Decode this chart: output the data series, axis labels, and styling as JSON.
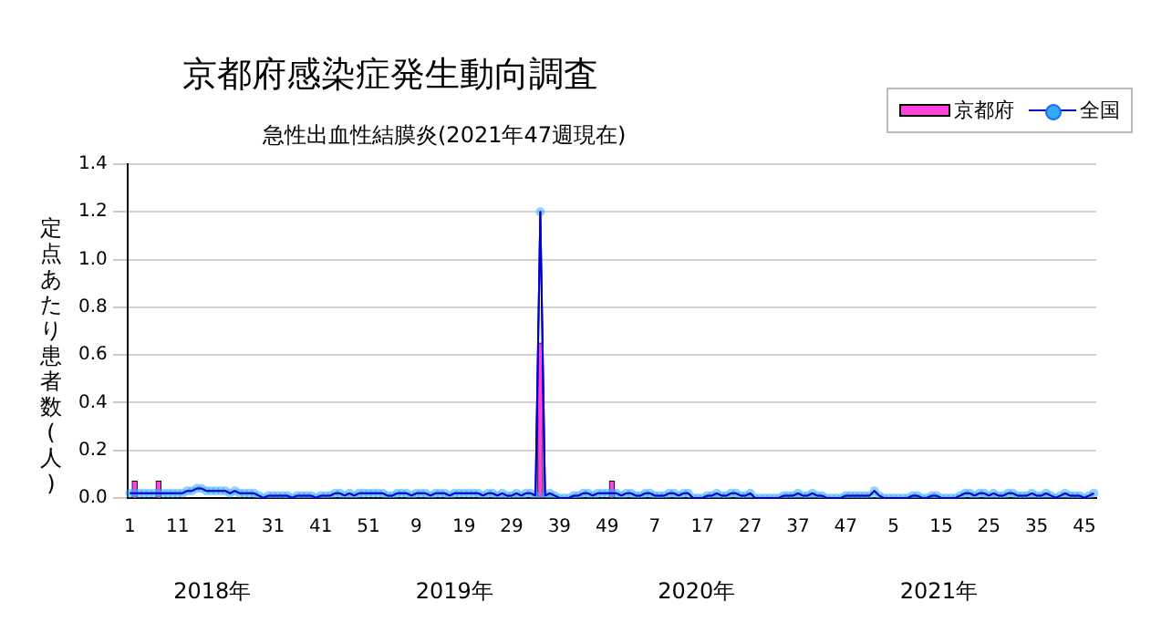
{
  "chart_data": {
    "type": "bar",
    "title": "京都府感染症発生動向調査",
    "subtitle": "急性出血性結膜炎(2021年47週現在)",
    "ylabel": "定点あたり患者数(人)",
    "annotations": [
      "2018年",
      "2019年",
      "2020年",
      "2021年"
    ],
    "categories": [
      "1",
      null,
      null,
      null,
      null,
      null,
      null,
      null,
      null,
      null,
      "11",
      null,
      null,
      null,
      null,
      null,
      null,
      null,
      null,
      null,
      "21",
      null,
      null,
      null,
      null,
      null,
      null,
      null,
      null,
      null,
      "31",
      null,
      null,
      null,
      null,
      null,
      null,
      null,
      null,
      null,
      "41",
      null,
      null,
      null,
      null,
      null,
      null,
      null,
      null,
      null,
      "51",
      null,
      null,
      null,
      null,
      null,
      null,
      null,
      null,
      null,
      "9",
      null,
      null,
      null,
      null,
      null,
      null,
      null,
      null,
      null,
      "19",
      null,
      null,
      null,
      null,
      null,
      null,
      null,
      null,
      null,
      "29",
      null,
      null,
      null,
      null,
      null,
      null,
      null,
      null,
      null,
      "39",
      null,
      null,
      null,
      null,
      null,
      null,
      null,
      null,
      null,
      "49",
      null,
      null,
      null,
      null,
      null,
      null,
      null,
      null,
      null,
      "7",
      null,
      null,
      null,
      null,
      null,
      null,
      null,
      null,
      null,
      "17",
      null,
      null,
      null,
      null,
      null,
      null,
      null,
      null,
      null,
      "27",
      null,
      null,
      null,
      null,
      null,
      null,
      null,
      null,
      null,
      "37",
      null,
      null,
      null,
      null,
      null,
      null,
      null,
      null,
      null,
      "47",
      null,
      null,
      null,
      null,
      null,
      null,
      null,
      null,
      null,
      "5",
      null,
      null,
      null,
      null,
      null,
      null,
      null,
      null,
      null,
      "15",
      null,
      null,
      null,
      null,
      null,
      null,
      null,
      null,
      null,
      "25",
      null,
      null,
      null,
      null,
      null,
      null,
      null,
      null,
      null,
      "35",
      null,
      null,
      null,
      null,
      null,
      null,
      null,
      null,
      null,
      "45",
      null,
      null
    ],
    "series": [
      {
        "name": "京都府",
        "color": "#ff44dd",
        "values": [
          0,
          0.07,
          0,
          0,
          0,
          0,
          0.07,
          0,
          0,
          0,
          0,
          0,
          0,
          0,
          0,
          0,
          0,
          0,
          0,
          0,
          0,
          0,
          0,
          0,
          0,
          0,
          0,
          0,
          0,
          0,
          0,
          0,
          0,
          0,
          0,
          0,
          0,
          0,
          0,
          0,
          0,
          0,
          0,
          0,
          0,
          0,
          0,
          0,
          0,
          0,
          0,
          0,
          0,
          0,
          0,
          0,
          0,
          0,
          0,
          0,
          0,
          0,
          0,
          0,
          0,
          0,
          0,
          0,
          0,
          0,
          0,
          0,
          0,
          0,
          0,
          0,
          0,
          0,
          0,
          0,
          0,
          0,
          0,
          0,
          0,
          0,
          0.65,
          0,
          0,
          0,
          0,
          0,
          0,
          0,
          0,
          0,
          0,
          0,
          0,
          0,
          0,
          0.07,
          0,
          0,
          0,
          0,
          0,
          0,
          0,
          0,
          0,
          0,
          0,
          0,
          0,
          0,
          0,
          0,
          0,
          0,
          0,
          0,
          0,
          0,
          0,
          0,
          0,
          0,
          0,
          0,
          0,
          0,
          0,
          0,
          0,
          0,
          0,
          0,
          0,
          0,
          0,
          0,
          0,
          0,
          0,
          0,
          0,
          0,
          0,
          0,
          0,
          0,
          0,
          0,
          0,
          0,
          0,
          0,
          0,
          0,
          0,
          0,
          0,
          0,
          0,
          0,
          0,
          0,
          0,
          0,
          0,
          0,
          0,
          0,
          0,
          0,
          0,
          0,
          0,
          0,
          0,
          0,
          0,
          0,
          0,
          0,
          0,
          0,
          0,
          0,
          0,
          0,
          0,
          0,
          0,
          0,
          0,
          0,
          0,
          0,
          0,
          0,
          0
        ]
      },
      {
        "name": "全国",
        "type": "line",
        "color": "#33aaff",
        "values": [
          0.02,
          0.02,
          0.02,
          0.02,
          0.02,
          0.02,
          0.02,
          0.02,
          0.02,
          0.02,
          0.02,
          0.02,
          0.03,
          0.03,
          0.04,
          0.04,
          0.03,
          0.03,
          0.03,
          0.03,
          0.03,
          0.02,
          0.03,
          0.02,
          0.02,
          0.02,
          0.02,
          0.01,
          0.0,
          0.01,
          0.01,
          0.01,
          0.01,
          0.01,
          0.0,
          0.01,
          0.01,
          0.01,
          0.01,
          0.0,
          0.01,
          0.01,
          0.01,
          0.02,
          0.02,
          0.01,
          0.02,
          0.01,
          0.02,
          0.02,
          0.02,
          0.02,
          0.02,
          0.02,
          0.01,
          0.01,
          0.02,
          0.02,
          0.02,
          0.01,
          0.02,
          0.02,
          0.02,
          0.01,
          0.02,
          0.02,
          0.02,
          0.01,
          0.02,
          0.02,
          0.02,
          0.02,
          0.02,
          0.02,
          0.01,
          0.02,
          0.02,
          0.01,
          0.02,
          0.01,
          0.01,
          0.02,
          0.01,
          0.02,
          0.02,
          0.01,
          1.2,
          0.01,
          0.02,
          0.01,
          0.0,
          0.0,
          0.0,
          0.01,
          0.01,
          0.02,
          0.02,
          0.01,
          0.02,
          0.02,
          0.02,
          0.02,
          0.02,
          0.01,
          0.02,
          0.02,
          0.01,
          0.01,
          0.02,
          0.02,
          0.01,
          0.01,
          0.01,
          0.02,
          0.02,
          0.01,
          0.02,
          0.02,
          0.0,
          0.0,
          0.0,
          0.01,
          0.01,
          0.02,
          0.01,
          0.01,
          0.02,
          0.02,
          0.01,
          0.01,
          0.02,
          0.0,
          0.0,
          0.0,
          0.0,
          0.0,
          0.0,
          0.01,
          0.01,
          0.01,
          0.02,
          0.01,
          0.01,
          0.02,
          0.01,
          0.01,
          0.0,
          0.0,
          0.0,
          0.0,
          0.01,
          0.01,
          0.01,
          0.01,
          0.01,
          0.01,
          0.03,
          0.01,
          0.0,
          0.0,
          0.0,
          0.0,
          0.0,
          0.0,
          0.01,
          0.01,
          0.0,
          0.0,
          0.01,
          0.01,
          0.0,
          0.0,
          0.0,
          0.0,
          0.01,
          0.02,
          0.02,
          0.01,
          0.02,
          0.02,
          0.01,
          0.02,
          0.01,
          0.01,
          0.02,
          0.02,
          0.01,
          0.01,
          0.01,
          0.02,
          0.01,
          0.01,
          0.02,
          0.01,
          0.0,
          0.01,
          0.02,
          0.01,
          0.01,
          0.01,
          0.0,
          0.01,
          0.02
        ]
      }
    ],
    "ylim": [
      0,
      1.4
    ],
    "yticks": [
      {
        "value": 0,
        "label": "0.0"
      },
      0.2,
      0.4,
      0.6,
      0.8,
      {
        "value": 1,
        "label": "1.0"
      },
      1.2,
      1.4
    ],
    "grid": "y",
    "legend": "top right",
    "marker": "circle"
  }
}
